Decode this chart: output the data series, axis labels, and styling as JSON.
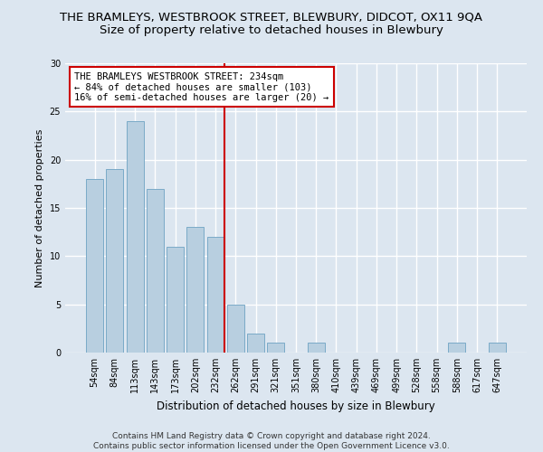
{
  "title": "THE BRAMLEYS, WESTBROOK STREET, BLEWBURY, DIDCOT, OX11 9QA",
  "subtitle": "Size of property relative to detached houses in Blewbury",
  "xlabel": "Distribution of detached houses by size in Blewbury",
  "ylabel": "Number of detached properties",
  "categories": [
    "54sqm",
    "84sqm",
    "113sqm",
    "143sqm",
    "173sqm",
    "202sqm",
    "232sqm",
    "262sqm",
    "291sqm",
    "321sqm",
    "351sqm",
    "380sqm",
    "410sqm",
    "439sqm",
    "469sqm",
    "499sqm",
    "528sqm",
    "558sqm",
    "588sqm",
    "617sqm",
    "647sqm"
  ],
  "values": [
    18,
    19,
    24,
    17,
    11,
    13,
    12,
    5,
    2,
    1,
    0,
    1,
    0,
    0,
    0,
    0,
    0,
    0,
    1,
    0,
    1
  ],
  "bar_color": "#b8cfe0",
  "bar_edge_color": "#7aaac8",
  "vline_color": "#cc0000",
  "annotation_text": "THE BRAMLEYS WESTBROOK STREET: 234sqm\n← 84% of detached houses are smaller (103)\n16% of semi-detached houses are larger (20) →",
  "annotation_box_color": "#ffffff",
  "annotation_box_edge": "#cc0000",
  "ylim": [
    0,
    30
  ],
  "yticks": [
    0,
    5,
    10,
    15,
    20,
    25,
    30
  ],
  "footnote": "Contains HM Land Registry data © Crown copyright and database right 2024.\nContains public sector information licensed under the Open Government Licence v3.0.",
  "bg_color": "#dce6f0",
  "plot_bg_color": "#dce6f0",
  "grid_color": "#ffffff",
  "title_fontsize": 9.5,
  "subtitle_fontsize": 9.5,
  "xlabel_fontsize": 8.5,
  "ylabel_fontsize": 8,
  "tick_fontsize": 7,
  "footnote_fontsize": 6.5
}
